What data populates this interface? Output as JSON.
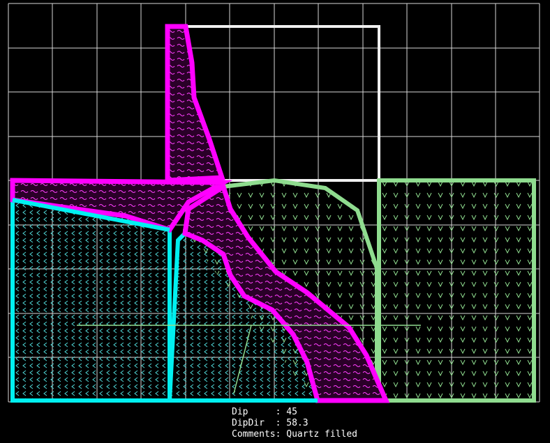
{
  "info": {
    "lines": [
      "Dip     : 45",
      "DipDir  : 58.3",
      "Comments: Quartz filled"
    ]
  }
}
